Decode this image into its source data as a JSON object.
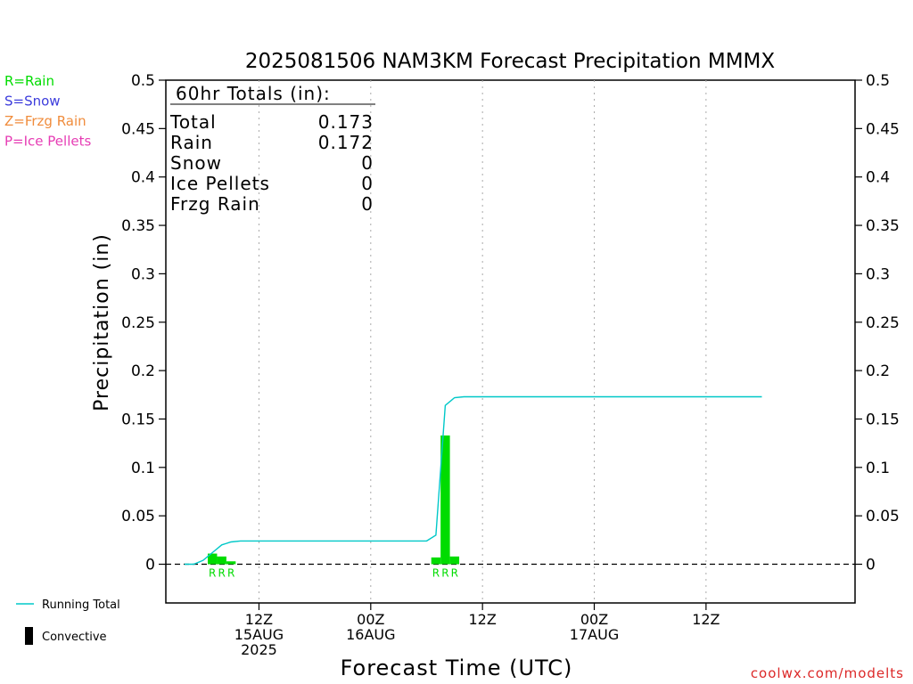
{
  "chart_data": {
    "type": "bar",
    "title": "2025081506 NAM3KM Forecast Precipitation MMMX",
    "xlabel": "Forecast Time (UTC)",
    "ylabel": "Precipitation (in)",
    "ylim": [
      -0.04,
      0.5
    ],
    "yticks": [
      "0",
      "0.05",
      "0.1",
      "0.15",
      "0.2",
      "0.25",
      "0.3",
      "0.35",
      "0.4",
      "0.45",
      "0.5"
    ],
    "xlim_hours": [
      -4,
      70
    ],
    "xticks": [
      {
        "hour": 6,
        "line1": "12Z",
        "line2": "15AUG",
        "line3": "2025"
      },
      {
        "hour": 18,
        "line1": "00Z",
        "line2": "16AUG",
        "line3": ""
      },
      {
        "hour": 30,
        "line1": "12Z",
        "line2": "",
        "line3": ""
      },
      {
        "hour": 42,
        "line1": "00Z",
        "line2": "17AUG",
        "line3": ""
      },
      {
        "hour": 54,
        "line1": "12Z",
        "line2": "",
        "line3": ""
      }
    ],
    "grid": true,
    "series": [
      {
        "name": "Running Total",
        "kind": "line",
        "color": "#00c8c8",
        "x": [
          -2,
          -1,
          0,
          1,
          2,
          3,
          4,
          5,
          6,
          12,
          18,
          24,
          25,
          26,
          27,
          28,
          34,
          40,
          42,
          48,
          54,
          60
        ],
        "y": [
          0,
          0,
          0.004,
          0.012,
          0.02,
          0.023,
          0.024,
          0.024,
          0.024,
          0.024,
          0.024,
          0.024,
          0.03,
          0.164,
          0.172,
          0.173,
          0.173,
          0.173,
          0.173,
          0.173,
          0.173,
          0.173
        ]
      },
      {
        "name": "Rain",
        "kind": "bar",
        "color": "#00dc00",
        "x": [
          1,
          2,
          3,
          25,
          26,
          27
        ],
        "y": [
          0.011,
          0.008,
          0.003,
          0.007,
          0.133,
          0.008
        ]
      }
    ],
    "precip_type_markers": [
      {
        "hour": 1,
        "label": "R"
      },
      {
        "hour": 2,
        "label": "R"
      },
      {
        "hour": 3,
        "label": "R"
      },
      {
        "hour": 25,
        "label": "R"
      },
      {
        "hour": 26,
        "label": "R"
      },
      {
        "hour": 27,
        "label": "R"
      }
    ],
    "totals": {
      "heading": "60hr Totals (in):",
      "rows": [
        {
          "label": "Total",
          "value": "0.173"
        },
        {
          "label": "Rain",
          "value": "0.172"
        },
        {
          "label": "Snow",
          "value": "0"
        },
        {
          "label": "Ice Pellets",
          "value": "0"
        },
        {
          "label": "Frzg Rain",
          "value": "0"
        }
      ]
    },
    "type_legend": [
      {
        "text": "R=Rain",
        "color": "#00dc00"
      },
      {
        "text": "S=Snow",
        "color": "#3c3cdc"
      },
      {
        "text": "Z=Frzg Rain",
        "color": "#f08c3c"
      },
      {
        "text": "P=Ice Pellets",
        "color": "#e63cb4"
      }
    ],
    "line_legend": [
      {
        "text": "Running Total",
        "color": "#00c8c8",
        "marker": "line"
      },
      {
        "text": "Convective",
        "color": "#000000",
        "marker": "bar"
      }
    ],
    "credit": "coolwx.com/modelts"
  }
}
